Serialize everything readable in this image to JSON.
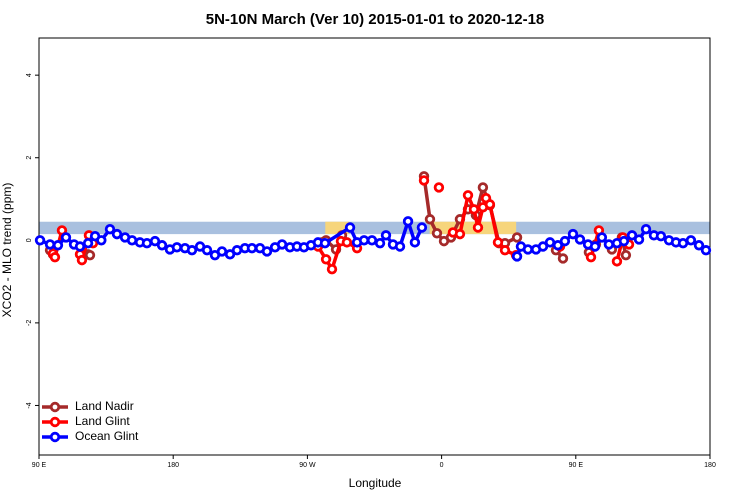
{
  "chart_data": {
    "type": "line",
    "title": "5N-10N March (Ver 10)   2015-01-01 to 2020-12-18",
    "x_label": "Longitude",
    "y_label": "XCO2 - MLO trend (ppm)",
    "xlim": [
      90,
      540
    ],
    "ylim": [
      -5.2,
      4.9
    ],
    "xticks": [
      {
        "value": 90,
        "label": "90 E"
      },
      180,
      {
        "value": 270,
        "label": "90 W"
      },
      {
        "value": 360,
        "label": "0"
      },
      {
        "value": 450,
        "label": "90 E"
      },
      {
        "value": 540,
        "label": "180"
      }
    ],
    "yticks": [
      -4,
      -2,
      0,
      2,
      4
    ],
    "band": [
      0.15,
      0.45
    ],
    "band_color": "#a9c0df",
    "highlight_ranges": [
      [
        282,
        298
      ],
      [
        352,
        410
      ]
    ],
    "highlight_color": "#f6d57c",
    "legend": "bottom-left",
    "series": [
      {
        "name": "Land Nadir",
        "color": "#a52a2a",
        "x": [
          97.4,
          99.4,
          null,
          122.9,
          124.2,
          null,
          277.1,
          279.8,
          282.5,
          289.2,
          293.2,
          null,
          348.2,
          352.2,
          356.9,
          361.6,
          366.3,
          372.3,
          377.7,
          383.0,
          387.7,
          392.4,
          398.5,
          402.5,
          410.6,
          null,
          436.7,
          441.4,
          null,
          458.8,
          463.5,
          null,
          474.2,
          480.9,
          483.6
        ],
        "values": [
          -0.24,
          -0.34,
          null,
          -0.34,
          -0.36,
          null,
          -0.07,
          -0.05,
          0,
          -0.22,
          0.12,
          null,
          1.55,
          0.51,
          0.17,
          -0.02,
          0.07,
          0.51,
          0.75,
          0.61,
          1.28,
          0.85,
          -0.07,
          -0.07,
          0.07,
          null,
          -0.24,
          -0.44,
          null,
          -0.29,
          -0.1,
          null,
          -0.22,
          0.07,
          -0.36
        ]
      },
      {
        "name": "Land Glint",
        "color": "#ff0000",
        "x": [
          99.4,
          100.7,
          105.4,
          null,
          117.5,
          118.8,
          123.5,
          126.2,
          null,
          277.1,
          282.5,
          286.5,
          292.5,
          296.5,
          303.3,
          null,
          348.2,
          null,
          358.2,
          null,
          367.6,
          372.3,
          377.7,
          381.7,
          384.4,
          387.7,
          389.8,
          392.4,
          397.8,
          402.5,
          409.9,
          null,
          439.4,
          null,
          460.2,
          465.5,
          null,
          477.6,
          481.6,
          485.7
        ],
        "values": [
          -0.32,
          -0.41,
          0.24,
          null,
          -0.34,
          -0.48,
          0.12,
          -0.07,
          null,
          -0.15,
          -0.46,
          -0.7,
          -0.02,
          -0.05,
          -0.19,
          null,
          1.45,
          null,
          1.28,
          null,
          0.19,
          0.15,
          1.09,
          0.75,
          0.31,
          0.8,
          1.02,
          0.87,
          -0.05,
          -0.24,
          -0.36,
          null,
          -0.15,
          null,
          -0.41,
          0.24,
          null,
          -0.51,
          0.07,
          -0.1
        ]
      },
      {
        "name": "Ocean Glint",
        "color": "#0000ff",
        "x": [
          90.7,
          97.4,
          102.7,
          108.1,
          113.5,
          117.5,
          122.9,
          127.6,
          131.8,
          137.6,
          142.3,
          147.7,
          152.4,
          157.7,
          162.4,
          167.8,
          172.5,
          177.8,
          182.5,
          187.9,
          192.6,
          198.0,
          202.7,
          208.0,
          212.7,
          218.1,
          222.8,
          228.1,
          232.8,
          238.2,
          242.9,
          248.3,
          253.0,
          258.3,
          263.0,
          267.7,
          272.4,
          277.1,
          281.8,
          298.6,
          303.3,
          308.0,
          313.3,
          318.7,
          322.7,
          327.4,
          332.1,
          337.5,
          342.1,
          346.8,
          null,
          410.6,
          413.2,
          417.9,
          423.3,
          428.0,
          432.7,
          438.0,
          442.7,
          448.1,
          452.8,
          458.2,
          462.9,
          467.5,
          472.2,
          477.6,
          482.3,
          487.7,
          492.4,
          497.1,
          502.4,
          507.1,
          512.5,
          517.2,
          521.9,
          527.2,
          532.6,
          537.3
        ],
        "values": [
          0,
          -0.1,
          -0.12,
          0.07,
          -0.1,
          -0.15,
          -0.07,
          0.1,
          0,
          0.27,
          0.15,
          0.07,
          0,
          -0.05,
          -0.07,
          -0.02,
          -0.12,
          -0.22,
          -0.17,
          -0.19,
          -0.24,
          -0.15,
          -0.24,
          -0.36,
          -0.27,
          -0.34,
          -0.24,
          -0.19,
          -0.19,
          -0.19,
          -0.27,
          -0.17,
          -0.1,
          -0.17,
          -0.15,
          -0.17,
          -0.12,
          -0.05,
          -0.07,
          0.31,
          -0.05,
          0,
          0,
          -0.07,
          0.12,
          -0.1,
          -0.15,
          0.46,
          -0.05,
          0.31,
          null,
          -0.39,
          -0.15,
          -0.22,
          -0.22,
          -0.15,
          -0.05,
          -0.12,
          -0.02,
          0.15,
          0.02,
          -0.1,
          -0.15,
          0.07,
          -0.1,
          -0.07,
          -0.02,
          0.12,
          0.02,
          0.27,
          0.12,
          0.1,
          0,
          -0.05,
          -0.07,
          0,
          -0.12,
          -0.24
        ]
      }
    ]
  }
}
